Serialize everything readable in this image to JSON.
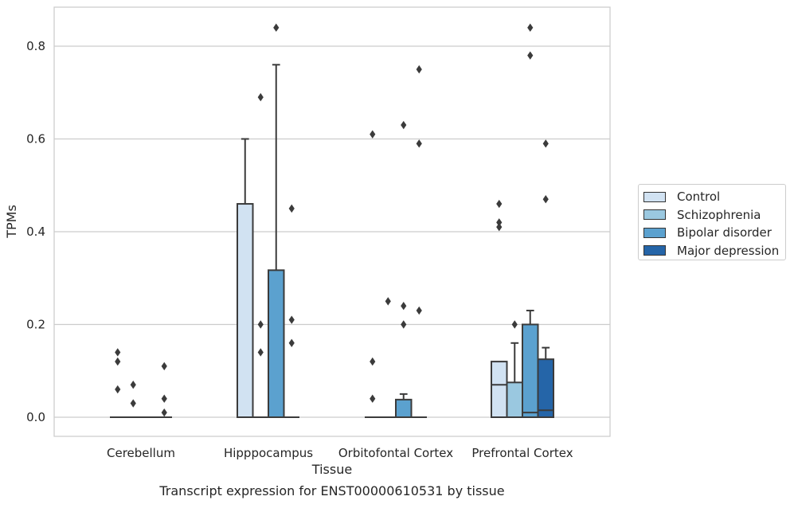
{
  "chart_data": {
    "type": "box",
    "caption": "Transcript expression for ENST00000610531 by tissue",
    "xlabel": "Tissue",
    "ylabel": "TPMs",
    "ylim": [
      -0.04,
      0.885
    ],
    "yticks": [
      0.0,
      0.2,
      0.4,
      0.6,
      0.8
    ],
    "ytick_labels": [
      "0.0",
      "0.2",
      "0.4",
      "0.6",
      "0.8"
    ],
    "grid": "horizontal",
    "legend_position": "outside right",
    "categories": [
      "Cerebellum",
      "Hipppocampus",
      "Orbitofontal Cortex",
      "Prefrontal Cortex"
    ],
    "series": [
      {
        "name": "Control",
        "color": "#d1e2f2",
        "boxes": [
          {
            "q1": 0,
            "median": 0,
            "q3": 0,
            "whisker_low": 0,
            "whisker_high": 0,
            "outliers": [
              0.14,
              0.12,
              0.06
            ]
          },
          {
            "q1": 0,
            "median": 0,
            "q3": 0.46,
            "whisker_low": 0,
            "whisker_high": 0.6,
            "outliers": []
          },
          {
            "q1": 0,
            "median": 0,
            "q3": 0,
            "whisker_low": 0,
            "whisker_high": 0,
            "outliers": [
              0.61,
              0.12,
              0.04
            ]
          },
          {
            "q1": 0,
            "median": 0.07,
            "q3": 0.12,
            "whisker_low": 0,
            "whisker_high": 0.12,
            "outliers": [
              0.46,
              0.42,
              0.41
            ]
          }
        ]
      },
      {
        "name": "Schizophrenia",
        "color": "#9ac8e0",
        "boxes": [
          {
            "q1": 0,
            "median": 0,
            "q3": 0,
            "whisker_low": 0,
            "whisker_high": 0,
            "outliers": [
              0.07,
              0.03
            ]
          },
          {
            "q1": 0,
            "median": 0,
            "q3": 0,
            "whisker_low": 0,
            "whisker_high": 0,
            "outliers": [
              0.69,
              0.2,
              0.14
            ]
          },
          {
            "q1": 0,
            "median": 0,
            "q3": 0,
            "whisker_low": 0,
            "whisker_high": 0,
            "outliers": [
              0.25
            ]
          },
          {
            "q1": 0,
            "median": 0,
            "q3": 0.075,
            "whisker_low": 0,
            "whisker_high": 0.16,
            "outliers": [
              0.2
            ]
          }
        ]
      },
      {
        "name": "Bipolar disorder",
        "color": "#5ba1cf",
        "boxes": [
          {
            "q1": 0,
            "median": 0,
            "q3": 0,
            "whisker_low": 0,
            "whisker_high": 0,
            "outliers": []
          },
          {
            "q1": 0,
            "median": 0,
            "q3": 0.317,
            "whisker_low": 0,
            "whisker_high": 0.76,
            "outliers": [
              0.84
            ]
          },
          {
            "q1": 0,
            "median": 0,
            "q3": 0.038,
            "whisker_low": 0,
            "whisker_high": 0.05,
            "outliers": [
              0.63,
              0.24,
              0.2
            ]
          },
          {
            "q1": 0,
            "median": 0.01,
            "q3": 0.2,
            "whisker_low": 0,
            "whisker_high": 0.23,
            "outliers": [
              0.84,
              0.78
            ]
          }
        ]
      },
      {
        "name": "Major depression",
        "color": "#2565a8",
        "boxes": [
          {
            "q1": 0,
            "median": 0,
            "q3": 0,
            "whisker_low": 0,
            "whisker_high": 0,
            "outliers": [
              0.11,
              0.04,
              0.01
            ]
          },
          {
            "q1": 0,
            "median": 0,
            "q3": 0,
            "whisker_low": 0,
            "whisker_high": 0,
            "outliers": [
              0.45,
              0.21,
              0.16
            ]
          },
          {
            "q1": 0,
            "median": 0,
            "q3": 0,
            "whisker_low": 0,
            "whisker_high": 0,
            "outliers": [
              0.75,
              0.59,
              0.23
            ]
          },
          {
            "q1": 0,
            "median": 0.015,
            "q3": 0.125,
            "whisker_low": 0,
            "whisker_high": 0.15,
            "outliers": [
              0.59,
              0.47
            ]
          }
        ]
      }
    ]
  }
}
